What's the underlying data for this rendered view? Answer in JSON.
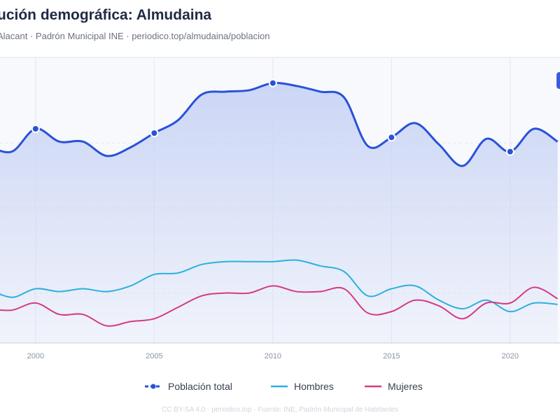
{
  "header": {
    "title": "ución demográfica: Almudaina",
    "subtitle": "Alacant · Padrón Municipal INE · periodico.top/almudaina/poblacion"
  },
  "legend": {
    "total_label": "Población total",
    "hombres_label": "Hombres",
    "mujeres_label": "Mujeres"
  },
  "footer": {
    "text": "CC BY-SA 4.0 · periodico.top · Fuente: INE, Padrón Municipal de Habitantes"
  },
  "colors": {
    "total": "#2952d9",
    "hombres": "#2bb0e0",
    "mujeres": "#d63a82",
    "fill": "#c9d4f5"
  },
  "chart_data": {
    "type": "line",
    "x": [
      1998,
      1999,
      2000,
      2001,
      2002,
      2003,
      2004,
      2005,
      2006,
      2007,
      2008,
      2009,
      2010,
      2011,
      2012,
      2013,
      2014,
      2015,
      2016,
      2017,
      2018,
      2019,
      2020,
      2021,
      2022
    ],
    "xticks": [
      2000,
      2005,
      2010,
      2015,
      2020
    ],
    "xlim": [
      1998.5,
      2022.1
    ],
    "ylim": [
      0,
      1
    ],
    "y_relative": true,
    "grid": true,
    "legend_position": "bottom",
    "series": [
      {
        "name": "Población total",
        "markers_at": [
          2000,
          2005,
          2010,
          2015,
          2020
        ],
        "values": [
          0.69,
          0.67,
          0.75,
          0.705,
          0.705,
          0.655,
          0.685,
          0.735,
          0.78,
          0.87,
          0.88,
          0.885,
          0.91,
          0.9,
          0.88,
          0.86,
          0.69,
          0.72,
          0.77,
          0.695,
          0.62,
          0.715,
          0.67,
          0.75,
          0.705
        ]
      },
      {
        "name": "Hombres",
        "values": [
          0.19,
          0.16,
          0.19,
          0.18,
          0.19,
          0.18,
          0.2,
          0.24,
          0.245,
          0.275,
          0.285,
          0.285,
          0.285,
          0.29,
          0.27,
          0.25,
          0.165,
          0.19,
          0.2,
          0.15,
          0.12,
          0.15,
          0.11,
          0.14,
          0.135
        ]
      },
      {
        "name": "Mujeres",
        "values": [
          0.12,
          0.115,
          0.14,
          0.1,
          0.1,
          0.06,
          0.075,
          0.085,
          0.125,
          0.165,
          0.175,
          0.175,
          0.2,
          0.18,
          0.18,
          0.19,
          0.105,
          0.11,
          0.15,
          0.13,
          0.085,
          0.14,
          0.14,
          0.195,
          0.155
        ]
      }
    ]
  }
}
